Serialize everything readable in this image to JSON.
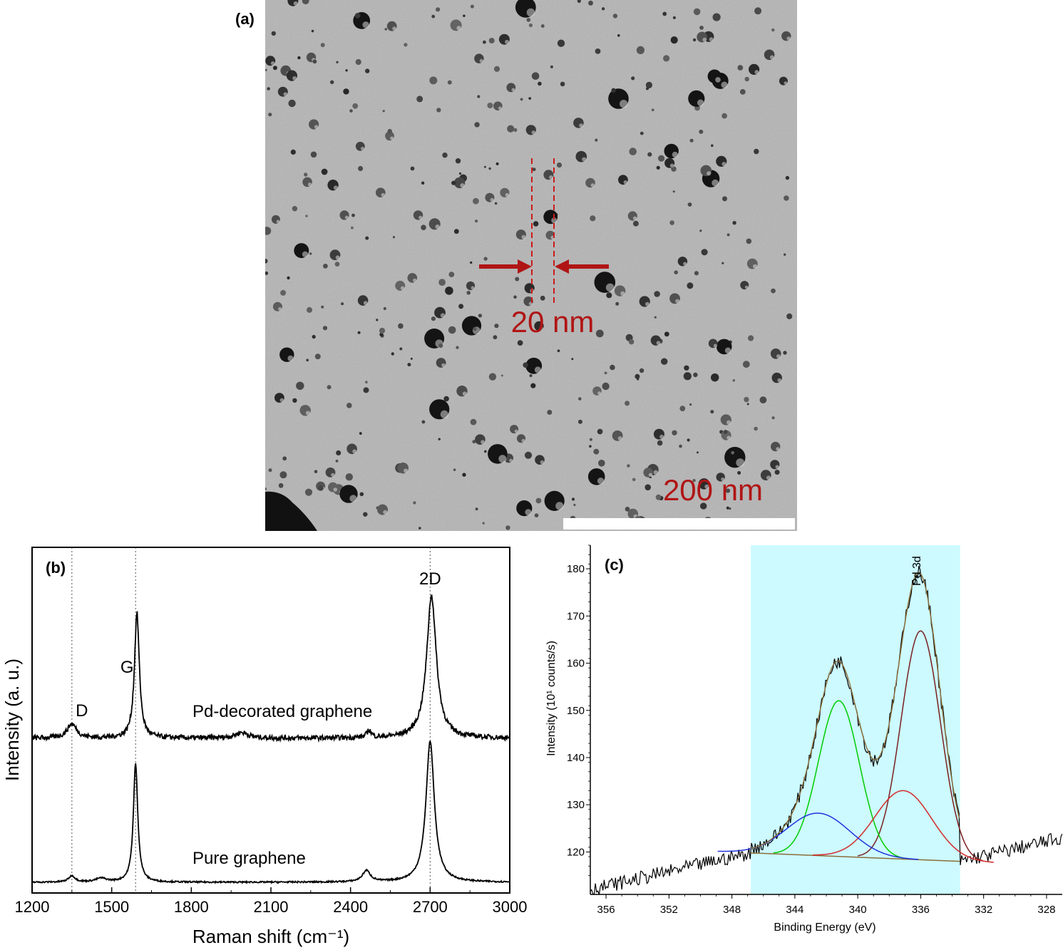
{
  "panels": {
    "a": {
      "label": "(a)",
      "annotation": "20 nm",
      "scale_bar": "200 nm"
    },
    "b": {
      "label": "(b)"
    },
    "c": {
      "label": "(c)"
    }
  },
  "chart_data": [
    {
      "panel": "b",
      "type": "line",
      "xlabel": "Raman shift (cm⁻¹)",
      "ylabel": "Intensity (a. u.)",
      "xlim": [
        1200,
        3000
      ],
      "xticks": [
        "1200",
        "1500",
        "1800",
        "2100",
        "2400",
        "2700",
        "3000"
      ],
      "y_ticks_shown": false,
      "peak_labels": [
        {
          "text": "D",
          "x": 1350
        },
        {
          "text": "G",
          "x": 1590
        },
        {
          "text": "2D",
          "x": 2700
        }
      ],
      "series": [
        {
          "name": "Pd-decorated graphene",
          "baseline": 1.0,
          "peaks": [
            [
              1350,
              0.1,
              22
            ],
            [
              1595,
              0.88,
              11
            ],
            [
              1990,
              0.04,
              30
            ],
            [
              2470,
              0.05,
              10
            ],
            [
              2705,
              1.0,
              22
            ]
          ]
        },
        {
          "name": "Pure graphene",
          "baseline": 0.0,
          "peaks": [
            [
              1350,
              0.05,
              15
            ],
            [
              1460,
              0.03,
              25
            ],
            [
              1590,
              0.95,
              10
            ],
            [
              2460,
              0.09,
              18
            ],
            [
              2700,
              1.13,
              19
            ]
          ]
        }
      ]
    },
    {
      "panel": "c",
      "type": "line",
      "xlabel": "Binding Energy (eV)",
      "ylabel": "Intensity (10¹ counts/s)",
      "xlim": [
        357,
        327
      ],
      "ylim": [
        111,
        185
      ],
      "xticks": [
        "356",
        "352",
        "348",
        "344",
        "340",
        "336",
        "332",
        "328"
      ],
      "yticks": [
        "120",
        "130",
        "140",
        "150",
        "160",
        "170",
        "180"
      ],
      "peak_label": "Pd 3d",
      "highlight_region": [
        346.8,
        333.5
      ],
      "colors": {
        "data": "#000000",
        "envelope": "#8a6d3b",
        "highlight": "#ccfaff",
        "pd_3d5_fit": "#7a1f1f",
        "pd_3d3_fit": "#00cc00",
        "low_fit": "#d42a2a",
        "high_fit": "#2233dd",
        "background": "#8a6d3b"
      },
      "components": [
        {
          "center": 336.0,
          "height": 48.5,
          "width": 1.25,
          "color": "pd_3d5_fit"
        },
        {
          "center": 341.2,
          "height": 33.0,
          "width": 1.3,
          "color": "pd_3d3_fit"
        },
        {
          "center": 337.1,
          "height": 14.5,
          "width": 1.8,
          "color": "low_fit"
        },
        {
          "center": 342.5,
          "height": 9.0,
          "width": 2.0,
          "color": "high_fit"
        }
      ]
    }
  ]
}
